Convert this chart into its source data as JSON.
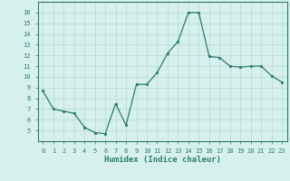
{
  "x": [
    0,
    1,
    2,
    3,
    4,
    5,
    6,
    7,
    8,
    9,
    10,
    11,
    12,
    13,
    14,
    15,
    16,
    17,
    18,
    19,
    20,
    21,
    22,
    23
  ],
  "y": [
    8.7,
    7.0,
    6.8,
    6.6,
    5.3,
    4.8,
    4.7,
    7.5,
    5.5,
    9.3,
    9.3,
    10.4,
    12.2,
    13.3,
    16.0,
    16.0,
    11.9,
    11.8,
    11.0,
    10.9,
    11.0,
    11.0,
    10.1,
    9.5
  ],
  "line_color": "#2d7a6e",
  "marker": "o",
  "marker_size": 1.8,
  "bg_color": "#d6f0ee",
  "grid_color": "#b5d8d4",
  "axis_color": "#2d7a6e",
  "xlabel": "Humidex (Indice chaleur)",
  "ylim": [
    4,
    17
  ],
  "xlim": [
    -0.5,
    23.5
  ],
  "yticks": [
    5,
    6,
    7,
    8,
    9,
    10,
    11,
    12,
    13,
    14,
    15,
    16
  ],
  "xticks": [
    0,
    1,
    2,
    3,
    4,
    5,
    6,
    7,
    8,
    9,
    10,
    11,
    12,
    13,
    14,
    15,
    16,
    17,
    18,
    19,
    20,
    21,
    22,
    23
  ],
  "tick_label_fontsize": 5.0,
  "xlabel_fontsize": 6.5
}
